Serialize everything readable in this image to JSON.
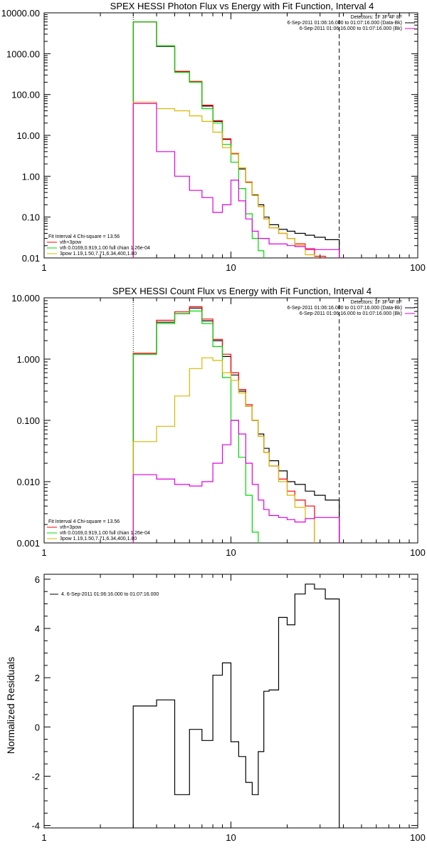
{
  "colors": {
    "black": "#000000",
    "red": "#ff0000",
    "green": "#00d800",
    "yellow": "#d8b800",
    "magenta": "#e000e0"
  },
  "chart_data": [
    {
      "type": "line",
      "title": "SPEX HESSI Photon Flux vs Energy with Fit Function, Interval 4",
      "xscale": "log",
      "yscale": "log",
      "xlim": [
        1,
        100
      ],
      "ylim": [
        0.01,
        10000
      ],
      "xticks": [
        1,
        10,
        100
      ],
      "xtick_labels": [
        "1",
        "10",
        "100"
      ],
      "yticks": [
        0.01,
        0.1,
        1,
        10,
        100,
        1000,
        10000
      ],
      "ytick_labels": [
        "0.01",
        "0.10",
        "1.00",
        "10.00",
        "100.00",
        "1000.00",
        "10000.00"
      ],
      "vlines": [
        {
          "x": 3,
          "style": "dotted",
          "color": "black"
        },
        {
          "x": 38,
          "style": "dashed",
          "color": "black"
        }
      ],
      "legend_topright": [
        "Detectors: 1F 3F 4F 8F",
        "6-Sep-2011 01:06:16.000 to 01:07:16.000 (Data-Bk)",
        "6-Sep-2011 01:06:16.000 to 01:07:16.000 (Bk)"
      ],
      "legend_topright_colors": [
        "none",
        "black",
        "magenta"
      ],
      "legend_bottomleft": [
        "Fit Interval  4    Chi-square = 13.56",
        "vth+3pow",
        "vth 0.0169,0.919,1.00  full chian 1.26e-04",
        "3pow 1.19,1.50,7.71,6.34,400,1.80"
      ],
      "legend_bottomleft_colors": [
        "none",
        "red",
        "green",
        "yellow"
      ],
      "bin_edges": [
        3,
        4,
        5,
        6,
        7,
        8,
        9,
        10,
        11,
        12,
        13,
        14,
        15,
        16,
        18,
        20,
        22,
        25,
        28,
        32,
        38
      ],
      "series": [
        {
          "name": "6-Sep-2011 01:06:16.000 to 01:07:16.000 (Data-Bk)",
          "color": "black",
          "values": [
            6000,
            1500,
            360,
            200,
            52,
            22,
            8,
            3.5,
            1.5,
            0.7,
            0.35,
            0.2,
            0.1,
            0.065,
            0.05,
            0.045,
            0.04,
            0.036,
            0.032,
            0.028
          ]
        },
        {
          "name": "vth+3pow",
          "color": "red",
          "values": [
            6000,
            1550,
            370,
            210,
            55,
            23,
            8.2,
            3.6,
            1.6,
            0.72,
            0.34,
            0.18,
            0.09,
            0.055,
            0.04,
            0.03,
            0.022,
            0.016,
            0.011,
            null
          ]
        },
        {
          "name": "vth 0.0169,0.919,1.00  full chian 1.26e-04",
          "color": "green",
          "values": [
            6000,
            1550,
            350,
            200,
            45,
            20,
            6,
            2.2,
            0.5,
            0.12,
            0.03,
            0.015,
            null,
            null,
            null,
            null,
            null,
            null,
            null,
            null
          ]
        },
        {
          "name": "3pow 1.19,1.50,7.71,6.34,400,1.80",
          "color": "yellow",
          "values": [
            65,
            45,
            40,
            30,
            22,
            12,
            5,
            3.5,
            1.6,
            0.7,
            0.34,
            0.18,
            0.09,
            0.055,
            0.04,
            0.03,
            0.02,
            0.012,
            null,
            null
          ]
        },
        {
          "name": "6-Sep-2011 01:06:16.000 to 01:07:16.000 (Bk)",
          "color": "magenta",
          "values": [
            60,
            4,
            1,
            0.45,
            0.3,
            0.13,
            0.2,
            0.8,
            0.25,
            0.09,
            0.045,
            0.03,
            0.03,
            0.022,
            0.022,
            0.02,
            0.019,
            0.017,
            0.016,
            0.016
          ]
        }
      ]
    },
    {
      "type": "line",
      "title": "SPEX HESSI Count Flux vs Energy with Fit Function, Interval 4",
      "xscale": "log",
      "yscale": "log",
      "xlim": [
        1,
        100
      ],
      "ylim": [
        0.001,
        10
      ],
      "xticks": [
        1,
        10,
        100
      ],
      "xtick_labels": [
        "1",
        "10",
        "100"
      ],
      "yticks": [
        0.001,
        0.01,
        0.1,
        1,
        10
      ],
      "ytick_labels": [
        "0.001",
        "0.010",
        "0.100",
        "1.000",
        "10.000"
      ],
      "vlines": [
        {
          "x": 3,
          "style": "dotted",
          "color": "black"
        },
        {
          "x": 38,
          "style": "dashed",
          "color": "black"
        }
      ],
      "legend_topright": [
        "Detectors: 1F 3F 4F 8F",
        "6-Sep-2011 01:06:16.000 to 01:07:16.000 (Data-Bk)",
        "6-Sep-2011 01:06:16.000 to 01:07:16.000 (Bk)"
      ],
      "legend_topright_colors": [
        "none",
        "black",
        "magenta"
      ],
      "legend_bottomleft": [
        "Fit Interval  4    Chi-square = 13.56",
        "vth+3pow",
        "vth 0.0169,0.919,1.00  full chian 1.26e-04",
        "3pow 1.19,1.50,7.71,6.34,400,1.80"
      ],
      "legend_bottomleft_colors": [
        "none",
        "red",
        "green",
        "yellow"
      ],
      "bin_edges": [
        3,
        4,
        5,
        6,
        7,
        8,
        9,
        10,
        11,
        12,
        13,
        14,
        15,
        16,
        18,
        20,
        22,
        25,
        28,
        32,
        38
      ],
      "series": [
        {
          "name": "6-Sep-2011 01:06:16.000 to 01:07:16.000 (Data-Bk)",
          "color": "black",
          "values": [
            1.2,
            4.0,
            5.5,
            6.8,
            4.2,
            2.0,
            1.1,
            0.55,
            0.3,
            0.17,
            0.1,
            0.06,
            0.035,
            0.022,
            0.015,
            0.01,
            0.009,
            0.007,
            0.006,
            0.005
          ]
        },
        {
          "name": "vth+3pow",
          "color": "red",
          "values": [
            1.25,
            4.3,
            5.9,
            7.2,
            4.5,
            2.1,
            1.2,
            0.6,
            0.32,
            0.18,
            0.1,
            0.055,
            0.03,
            0.018,
            0.011,
            0.007,
            0.005,
            0.004,
            null,
            null
          ]
        },
        {
          "name": "vth 0.0169,0.919,1.00  full chian 1.26e-04",
          "color": "green",
          "values": [
            1.2,
            3.8,
            5.5,
            6.1,
            3.8,
            1.6,
            0.5,
            0.1,
            0.025,
            0.006,
            0.0015,
            null,
            null,
            null,
            null,
            null,
            null,
            null,
            null,
            null
          ]
        },
        {
          "name": "3pow 1.19,1.50,7.71,6.34,400,1.80",
          "color": "yellow",
          "values": [
            0.045,
            0.08,
            0.25,
            0.7,
            1.05,
            0.95,
            0.6,
            0.45,
            0.28,
            0.17,
            0.1,
            0.055,
            0.03,
            0.018,
            0.01,
            0.006,
            0.0038,
            0.0025,
            null,
            null
          ]
        },
        {
          "name": "6-Sep-2011 01:06:16.000 to 01:07:16.000 (Bk)",
          "color": "magenta",
          "values": [
            0.013,
            0.011,
            0.009,
            0.0085,
            0.01,
            0.02,
            0.04,
            0.1,
            0.06,
            0.02,
            0.009,
            0.005,
            0.0035,
            0.0028,
            0.0026,
            0.0024,
            0.0022,
            0.0025,
            0.0026,
            0.0026
          ]
        }
      ]
    },
    {
      "type": "line",
      "title": "",
      "xscale": "log",
      "yscale": "linear",
      "xlim": [
        1,
        100
      ],
      "ylim": [
        -4.1,
        6.2
      ],
      "xticks": [
        1,
        10,
        100
      ],
      "xtick_labels": [
        "1",
        "10",
        "100"
      ],
      "yticks": [
        -4,
        -2,
        0,
        2,
        4,
        6
      ],
      "ytick_labels": [
        "-4",
        "-2",
        "0",
        "2",
        "4",
        "6"
      ],
      "ylabel": "Normalized Residuals",
      "legend_topleft": [
        "4.  6-Sep-2011 01:06:16.000 to 01:07:16.000"
      ],
      "bin_edges": [
        3,
        4,
        5,
        6,
        7,
        8,
        9,
        10,
        11,
        12,
        13,
        14,
        15,
        16,
        18,
        20,
        22,
        25,
        28,
        32,
        38
      ],
      "series": [
        {
          "name": "4.  6-Sep-2011 01:06:16.000 to 01:07:16.000",
          "color": "black",
          "values": [
            0.85,
            1.1,
            -2.75,
            -0.1,
            -0.55,
            2.1,
            2.6,
            -0.6,
            -1.2,
            -2.25,
            -2.75,
            -1.0,
            1.45,
            1.5,
            4.45,
            4.15,
            5.4,
            5.8,
            5.6,
            5.2
          ]
        }
      ]
    }
  ]
}
